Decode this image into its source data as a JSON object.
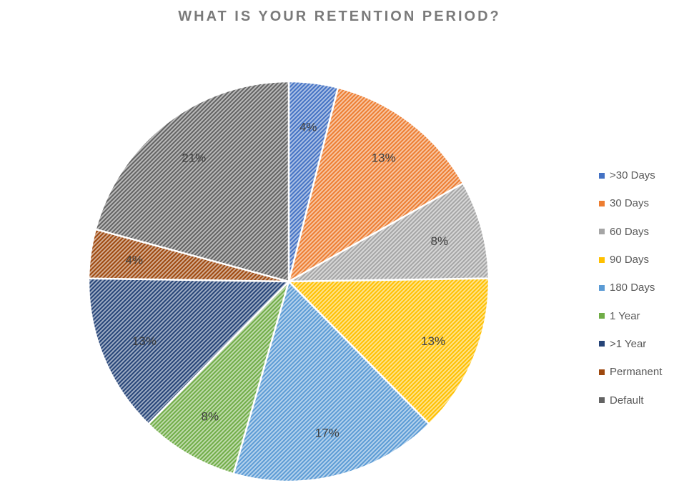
{
  "chart_data": {
    "type": "pie",
    "title": "WHAT IS YOUR RETENTION PERIOD?",
    "categories": [
      ">30 Days",
      "30 Days",
      "60 Days",
      "90 Days",
      "180 Days",
      "1 Year",
      ">1 Year",
      "Permanent",
      "Default"
    ],
    "values": [
      4,
      13,
      8,
      13,
      17,
      8,
      13,
      4,
      21
    ],
    "data_labels": [
      "4%",
      "13%",
      "8%",
      "13%",
      "17%",
      "8%",
      "13%",
      "4%",
      "21%"
    ],
    "colors": [
      "#4472c4",
      "#ed7d31",
      "#a5a5a5",
      "#ffc000",
      "#5b9bd5",
      "#70ad47",
      "#264478",
      "#9e480e",
      "#636363"
    ],
    "fill_pattern": "diagonal-hatch",
    "legend_position": "right",
    "start_angle_deg": 0,
    "direction": "clockwise"
  }
}
